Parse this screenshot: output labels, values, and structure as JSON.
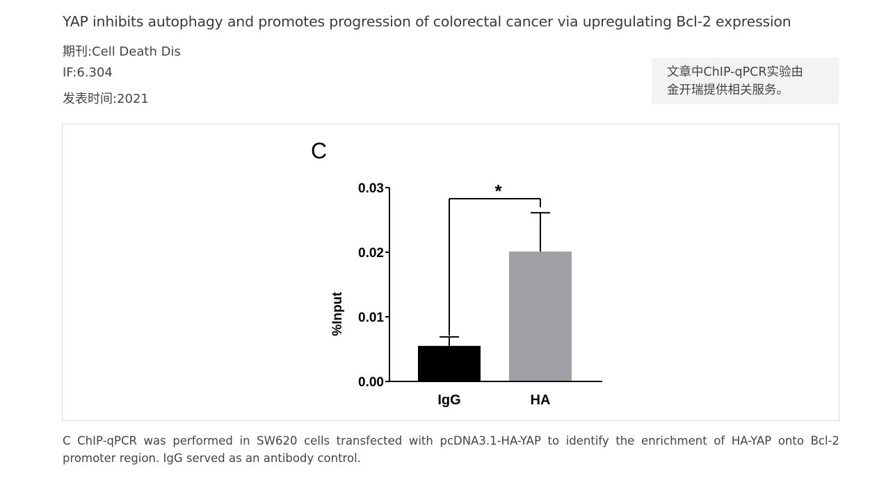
{
  "article": {
    "title": "YAP inhibits autophagy and promotes progression of colorectal cancer via upregulating Bcl-2 expression",
    "journal": "期刊:Cell Death Dis",
    "impact_factor": "IF:6.304",
    "published": "发表时间:2021"
  },
  "note": {
    "line1": "文章中ChIP-qPCR实验由",
    "line2": "金开瑞提供相关服务。"
  },
  "figure": {
    "panel_label": "C"
  },
  "chart_data": {
    "type": "bar",
    "categories": [
      "IgG",
      "HA"
    ],
    "values": [
      0.0055,
      0.0201
    ],
    "error_upper": [
      0.0069,
      0.0261
    ],
    "ylabel": "%Input",
    "ylim": [
      0,
      0.03
    ],
    "yticks": [
      "0.00",
      "0.01",
      "0.02",
      "0.03"
    ],
    "bar_colors": [
      "#000000",
      "#a0a0a4"
    ],
    "significance": "*",
    "grid": false,
    "legend": "none"
  },
  "caption": {
    "line1": "C ChIP-qPCR was performed in SW620 cells transfected with pcDNA3.1-HA-YAP to identify the enrichment of HA-YAP onto Bcl-2",
    "line2": "promoter region. IgG served as an antibody control."
  }
}
